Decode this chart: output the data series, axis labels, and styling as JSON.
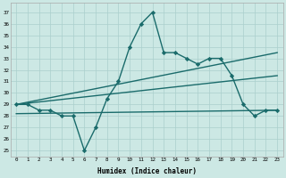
{
  "title": "",
  "xlabel": "Humidex (Indice chaleur)",
  "bg_color": "#cce8e4",
  "line_color": "#1a6b6b",
  "grid_color": "#aacfcc",
  "xlim": [
    -0.5,
    23.5
  ],
  "ylim": [
    24.5,
    37.8
  ],
  "yticks": [
    25,
    26,
    27,
    28,
    29,
    30,
    31,
    32,
    33,
    34,
    35,
    36,
    37
  ],
  "xticks": [
    0,
    1,
    2,
    3,
    4,
    5,
    6,
    7,
    8,
    9,
    10,
    11,
    12,
    13,
    14,
    15,
    16,
    17,
    18,
    19,
    20,
    21,
    22,
    23
  ],
  "series0_x": [
    0,
    1,
    2,
    3,
    4,
    5,
    6,
    7,
    8,
    9,
    10,
    11,
    12,
    13,
    14,
    15,
    16,
    17,
    18,
    19,
    20,
    21,
    22,
    23
  ],
  "series0_y": [
    29.0,
    29.0,
    28.5,
    28.5,
    28.0,
    28.0,
    25.0,
    27.0,
    29.5,
    31.0,
    34.0,
    36.0,
    37.0,
    33.5,
    33.5,
    33.0,
    32.5,
    33.0,
    33.0,
    31.5,
    29.0,
    28.0,
    28.5,
    28.5
  ],
  "series1_x": [
    0,
    23
  ],
  "series1_y": [
    29.0,
    33.5
  ],
  "series2_x": [
    0,
    23
  ],
  "series2_y": [
    29.0,
    31.5
  ],
  "series3_x": [
    0,
    23
  ],
  "series3_y": [
    28.2,
    28.5
  ]
}
